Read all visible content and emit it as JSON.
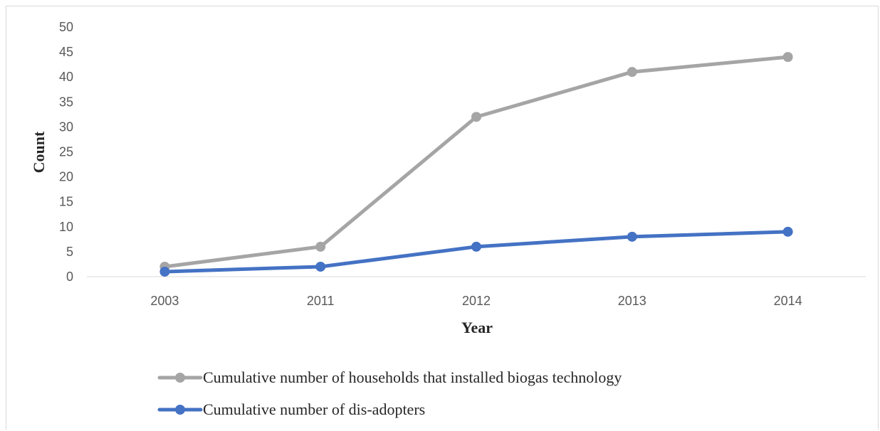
{
  "chart_data": {
    "type": "line",
    "categories": [
      "2003",
      "2011",
      "2012",
      "2013",
      "2014"
    ],
    "series": [
      {
        "name": "Cumulative number of households that installed biogas technology",
        "values": [
          2,
          6,
          32,
          41,
          44
        ],
        "color": "#a5a5a5"
      },
      {
        "name": "Cumulative number of dis-adopters",
        "values": [
          1,
          2,
          6,
          8,
          9
        ],
        "color": "#4472c4"
      }
    ],
    "title": "",
    "xlabel": "Year",
    "ylabel": "Count",
    "ylim": [
      0,
      50
    ],
    "yticks": [
      "0",
      "5",
      "10",
      "15",
      "20",
      "25",
      "30",
      "35",
      "40",
      "45",
      "50"
    ],
    "grid": false,
    "legend_position": "bottom"
  }
}
